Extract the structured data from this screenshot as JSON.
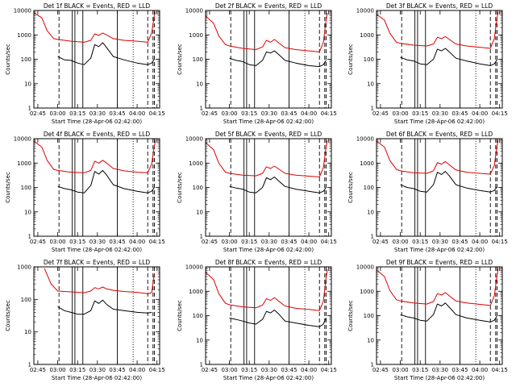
{
  "figure": {
    "colors": {
      "events": "#000000",
      "lld": "#e00000",
      "axis": "#000000"
    }
  },
  "chart_data": [
    {
      "type": "line",
      "title": "Det 1f BLACK = Events, RED = LLD",
      "xlabel": "Start Time (28-Apr-06 02:42:00)",
      "ylabel": "Counts/sec",
      "x_ticks": [
        "02:45",
        "03:00",
        "03:15",
        "03:30",
        "03:45",
        "04:00",
        "04:15"
      ],
      "y_ticks": [
        "1",
        "10",
        "100",
        "1000",
        "10000"
      ],
      "y_scale": "log",
      "ylim": [
        1,
        10000
      ],
      "series": [
        {
          "name": "Events",
          "color": "#000000",
          "x": [
            "03:00",
            "03:05",
            "03:10",
            "03:15",
            "03:20",
            "03:25",
            "03:28",
            "03:31",
            "03:34",
            "03:37",
            "03:42",
            "03:50",
            "04:00",
            "04:08",
            "04:11",
            "04:13"
          ],
          "values": [
            130,
            95,
            90,
            70,
            60,
            110,
            400,
            330,
            480,
            300,
            130,
            95,
            70,
            60,
            70,
            100
          ]
        },
        {
          "name": "LLD",
          "color": "#e00000",
          "x": [
            "02:42",
            "02:48",
            "02:52",
            "02:57",
            "03:00",
            "03:10",
            "03:20",
            "03:25",
            "03:28",
            "03:31",
            "03:34",
            "03:37",
            "03:42",
            "03:50",
            "04:00",
            "04:08",
            "04:11",
            "04:13",
            "04:14"
          ],
          "values": [
            8000,
            5000,
            1500,
            700,
            650,
            550,
            500,
            600,
            1100,
            950,
            1200,
            1000,
            700,
            600,
            550,
            500,
            1200,
            6000,
            9000
          ]
        }
      ]
    },
    {
      "type": "line",
      "title": "Det 2f BLACK = Events, RED = LLD",
      "xlabel": "Start Time (28-Apr-06 02:42:00)",
      "ylabel": "Counts/sec",
      "x_ticks": [
        "02:45",
        "03:00",
        "03:15",
        "03:30",
        "03:45",
        "04:00",
        "04:15"
      ],
      "y_ticks": [
        "1",
        "10",
        "100",
        "1000",
        "10000"
      ],
      "y_scale": "log",
      "ylim": [
        1,
        10000
      ],
      "series": [
        {
          "name": "Events",
          "color": "#000000",
          "x": [
            "03:00",
            "03:05",
            "03:10",
            "03:15",
            "03:20",
            "03:25",
            "03:28",
            "03:31",
            "03:34",
            "03:37",
            "03:42",
            "03:50",
            "04:00",
            "04:08",
            "04:11",
            "04:13"
          ],
          "values": [
            110,
            90,
            80,
            60,
            55,
            90,
            200,
            180,
            220,
            160,
            90,
            70,
            55,
            50,
            60,
            90
          ]
        },
        {
          "name": "LLD",
          "color": "#e00000",
          "x": [
            "02:42",
            "02:48",
            "02:52",
            "02:57",
            "03:00",
            "03:10",
            "03:20",
            "03:25",
            "03:28",
            "03:31",
            "03:34",
            "03:37",
            "03:42",
            "03:50",
            "04:00",
            "04:08",
            "04:11",
            "04:13",
            "04:14"
          ],
          "values": [
            6000,
            3000,
            900,
            400,
            350,
            280,
            250,
            320,
            600,
            500,
            650,
            480,
            300,
            250,
            220,
            200,
            500,
            4000,
            8000
          ]
        }
      ]
    },
    {
      "type": "line",
      "title": "Det 3f BLACK = Events, RED = LLD",
      "xlabel": "Start Time (28-Apr-06 02:42:00)",
      "ylabel": "Counts/sec",
      "x_ticks": [
        "02:45",
        "03:00",
        "03:15",
        "03:30",
        "03:45",
        "04:00",
        "04:15"
      ],
      "y_ticks": [
        "1",
        "10",
        "100",
        "1000",
        "10000"
      ],
      "y_scale": "log",
      "ylim": [
        1,
        10000
      ],
      "series": [
        {
          "name": "Events",
          "color": "#000000",
          "x": [
            "03:00",
            "03:05",
            "03:10",
            "03:15",
            "03:20",
            "03:25",
            "03:28",
            "03:31",
            "03:34",
            "03:37",
            "03:42",
            "03:50",
            "04:00",
            "04:08",
            "04:11",
            "04:13"
          ],
          "values": [
            120,
            95,
            85,
            65,
            60,
            100,
            260,
            220,
            280,
            200,
            110,
            85,
            65,
            55,
            65,
            95
          ]
        },
        {
          "name": "LLD",
          "color": "#e00000",
          "x": [
            "02:42",
            "02:48",
            "02:52",
            "02:57",
            "03:00",
            "03:10",
            "03:20",
            "03:25",
            "03:28",
            "03:31",
            "03:34",
            "03:37",
            "03:42",
            "03:50",
            "04:00",
            "04:08",
            "04:11",
            "04:13",
            "04:14"
          ],
          "values": [
            7000,
            4000,
            1200,
            500,
            450,
            380,
            350,
            420,
            800,
            700,
            850,
            650,
            420,
            350,
            310,
            280,
            700,
            5000,
            9000
          ]
        }
      ]
    },
    {
      "type": "line",
      "title": "Det 4f BLACK = Events, RED = LLD",
      "xlabel": "Start Time (28-Apr-06 02:42:00)",
      "ylabel": "Counts/sec",
      "x_ticks": [
        "02:45",
        "03:00",
        "03:15",
        "03:30",
        "03:45",
        "04:00",
        "04:15"
      ],
      "y_ticks": [
        "1",
        "10",
        "100",
        "1000",
        "10000"
      ],
      "y_scale": "log",
      "ylim": [
        1,
        10000
      ],
      "series": [
        {
          "name": "Events",
          "color": "#000000",
          "x": [
            "03:00",
            "03:05",
            "03:10",
            "03:15",
            "03:20",
            "03:25",
            "03:28",
            "03:31",
            "03:34",
            "03:37",
            "03:42",
            "03:50",
            "04:00",
            "04:08",
            "04:11",
            "04:13"
          ],
          "values": [
            110,
            90,
            80,
            65,
            60,
            120,
            450,
            350,
            500,
            320,
            130,
            90,
            70,
            60,
            70,
            100
          ]
        },
        {
          "name": "LLD",
          "color": "#e00000",
          "x": [
            "02:42",
            "02:48",
            "02:52",
            "02:57",
            "03:00",
            "03:10",
            "03:20",
            "03:25",
            "03:28",
            "03:31",
            "03:34",
            "03:37",
            "03:42",
            "03:50",
            "04:00",
            "04:08",
            "04:11",
            "04:13",
            "04:14"
          ],
          "values": [
            8000,
            4500,
            1300,
            550,
            500,
            420,
            400,
            500,
            1200,
            1000,
            1300,
            1000,
            600,
            480,
            420,
            400,
            900,
            5000,
            9000
          ]
        }
      ]
    },
    {
      "type": "line",
      "title": "Det 5f BLACK = Events, RED = LLD",
      "xlabel": "Start Time (28-Apr-06 02:42:00)",
      "ylabel": "Counts/sec",
      "x_ticks": [
        "02:45",
        "03:00",
        "03:15",
        "03:30",
        "03:45",
        "04:00",
        "04:15"
      ],
      "y_ticks": [
        "1",
        "10",
        "100",
        "1000",
        "10000"
      ],
      "y_scale": "log",
      "ylim": [
        1,
        10000
      ],
      "series": [
        {
          "name": "Events",
          "color": "#000000",
          "x": [
            "03:00",
            "03:05",
            "03:10",
            "03:15",
            "03:20",
            "03:25",
            "03:28",
            "03:31",
            "03:34",
            "03:37",
            "03:42",
            "03:50",
            "04:00",
            "04:08",
            "04:11",
            "04:13"
          ],
          "values": [
            110,
            95,
            85,
            65,
            60,
            100,
            250,
            210,
            270,
            190,
            110,
            85,
            70,
            60,
            70,
            100
          ]
        },
        {
          "name": "LLD",
          "color": "#e00000",
          "x": [
            "02:42",
            "02:48",
            "02:52",
            "02:57",
            "03:00",
            "03:10",
            "03:20",
            "03:25",
            "03:28",
            "03:31",
            "03:34",
            "03:37",
            "03:42",
            "03:50",
            "04:00",
            "04:08",
            "04:11",
            "04:13",
            "04:14"
          ],
          "values": [
            7000,
            3500,
            1000,
            420,
            380,
            320,
            300,
            380,
            700,
            600,
            750,
            580,
            380,
            320,
            290,
            270,
            650,
            4500,
            8500
          ]
        }
      ]
    },
    {
      "type": "line",
      "title": "Det 6f BLACK = Events, RED = LLD",
      "xlabel": "Start Time (28-Apr-06 02:42:00)",
      "ylabel": "Counts/sec",
      "x_ticks": [
        "02:45",
        "03:00",
        "03:15",
        "03:30",
        "03:45",
        "04:00",
        "04:15"
      ],
      "y_ticks": [
        "1",
        "10",
        "100",
        "1000",
        "10000"
      ],
      "y_scale": "log",
      "ylim": [
        1,
        10000
      ],
      "series": [
        {
          "name": "Events",
          "color": "#000000",
          "x": [
            "03:00",
            "03:05",
            "03:10",
            "03:15",
            "03:20",
            "03:25",
            "03:28",
            "03:31",
            "03:34",
            "03:37",
            "03:42",
            "03:50",
            "04:00",
            "04:08",
            "04:11",
            "04:13"
          ],
          "values": [
            130,
            100,
            90,
            70,
            65,
            130,
            420,
            340,
            450,
            300,
            130,
            95,
            75,
            65,
            75,
            105
          ]
        },
        {
          "name": "LLD",
          "color": "#e00000",
          "x": [
            "02:42",
            "02:48",
            "02:52",
            "02:57",
            "03:00",
            "03:10",
            "03:20",
            "03:25",
            "03:28",
            "03:31",
            "03:34",
            "03:37",
            "03:42",
            "03:50",
            "04:00",
            "04:08",
            "04:11",
            "04:13",
            "04:14"
          ],
          "values": [
            8000,
            4500,
            1300,
            550,
            480,
            400,
            380,
            480,
            1050,
            900,
            1150,
            850,
            520,
            420,
            380,
            350,
            800,
            5000,
            9000
          ]
        }
      ]
    },
    {
      "type": "line",
      "title": "Det 7f BLACK = Events, RED = LLD",
      "xlabel": "Start Time (28-Apr-06 02:42:00)",
      "ylabel": "Counts/sec",
      "x_ticks": [
        "02:45",
        "03:00",
        "03:15",
        "03:30",
        "03:45",
        "04:00",
        "04:15"
      ],
      "y_ticks": [
        "1",
        "10",
        "100",
        "1000"
      ],
      "y_scale": "log",
      "ylim": [
        1,
        1000
      ],
      "series": [
        {
          "name": "Events",
          "color": "#000000",
          "x": [
            "03:00",
            "03:05",
            "03:10",
            "03:15",
            "03:20",
            "03:25",
            "03:28",
            "03:31",
            "03:34",
            "03:37",
            "03:42",
            "03:50",
            "04:00",
            "04:08",
            "04:11"
          ],
          "values": [
            60,
            45,
            40,
            35,
            35,
            45,
            90,
            75,
            95,
            70,
            50,
            45,
            40,
            38,
            40
          ]
        },
        {
          "name": "LLD",
          "color": "#e00000",
          "x": [
            "02:50",
            "02:55",
            "03:00",
            "03:10",
            "03:20",
            "03:25",
            "03:28",
            "03:31",
            "03:34",
            "03:37",
            "03:42",
            "03:50",
            "04:00",
            "04:08",
            "04:11",
            "04:13"
          ],
          "values": [
            900,
            300,
            180,
            170,
            160,
            180,
            230,
            210,
            240,
            210,
            190,
            175,
            165,
            150,
            160,
            600
          ]
        }
      ]
    },
    {
      "type": "line",
      "title": "Det 8f BLACK = Events, RED = LLD",
      "xlabel": "Start Time (28-Apr-06 02:42:00)",
      "ylabel": "Counts/sec",
      "x_ticks": [
        "02:45",
        "03:00",
        "03:15",
        "03:30",
        "03:45",
        "04:00",
        "04:15"
      ],
      "y_ticks": [
        "1",
        "10",
        "100",
        "1000",
        "10000"
      ],
      "y_scale": "log",
      "ylim": [
        1,
        10000
      ],
      "series": [
        {
          "name": "Events",
          "color": "#000000",
          "x": [
            "03:00",
            "03:05",
            "03:10",
            "03:15",
            "03:20",
            "03:25",
            "03:28",
            "03:31",
            "03:34",
            "03:37",
            "03:42",
            "03:50",
            "04:00",
            "04:08",
            "04:11",
            "04:13"
          ],
          "values": [
            80,
            70,
            60,
            50,
            45,
            70,
            150,
            130,
            170,
            120,
            60,
            50,
            40,
            35,
            45,
            80
          ]
        },
        {
          "name": "LLD",
          "color": "#e00000",
          "x": [
            "02:42",
            "02:48",
            "02:52",
            "02:57",
            "03:00",
            "03:10",
            "03:20",
            "03:25",
            "03:28",
            "03:31",
            "03:34",
            "03:37",
            "03:42",
            "03:50",
            "04:00",
            "04:08",
            "04:11",
            "04:13",
            "04:14"
          ],
          "values": [
            6000,
            3000,
            800,
            320,
            280,
            230,
            210,
            270,
            500,
            420,
            550,
            400,
            250,
            200,
            180,
            160,
            400,
            3500,
            8000
          ]
        }
      ]
    },
    {
      "type": "line",
      "title": "Det 9f BLACK = Events, RED = LLD",
      "xlabel": "Start Time (28-Apr-06 02:42:00)",
      "ylabel": "Counts/sec",
      "x_ticks": [
        "02:45",
        "03:00",
        "03:15",
        "03:30",
        "03:45",
        "04:00",
        "04:15"
      ],
      "y_ticks": [
        "1",
        "10",
        "100",
        "1000",
        "10000"
      ],
      "y_scale": "log",
      "ylim": [
        1,
        10000
      ],
      "series": [
        {
          "name": "Events",
          "color": "#000000",
          "x": [
            "03:00",
            "03:05",
            "03:10",
            "03:15",
            "03:20",
            "03:25",
            "03:28",
            "03:31",
            "03:34",
            "03:37",
            "03:42",
            "03:50",
            "04:00",
            "04:08",
            "04:11",
            "04:13"
          ],
          "values": [
            110,
            90,
            80,
            65,
            60,
            110,
            300,
            250,
            330,
            220,
            110,
            80,
            65,
            55,
            65,
            95
          ]
        },
        {
          "name": "LLD",
          "color": "#e00000",
          "x": [
            "02:42",
            "02:48",
            "02:52",
            "02:57",
            "03:00",
            "03:10",
            "03:20",
            "03:25",
            "03:28",
            "03:31",
            "03:34",
            "03:37",
            "03:42",
            "03:50",
            "04:00",
            "04:08",
            "04:11",
            "04:13",
            "04:14"
          ],
          "values": [
            7500,
            4000,
            1100,
            450,
            400,
            330,
            300,
            380,
            800,
            700,
            880,
            650,
            400,
            330,
            290,
            260,
            650,
            4500,
            9000
          ]
        }
      ]
    }
  ]
}
